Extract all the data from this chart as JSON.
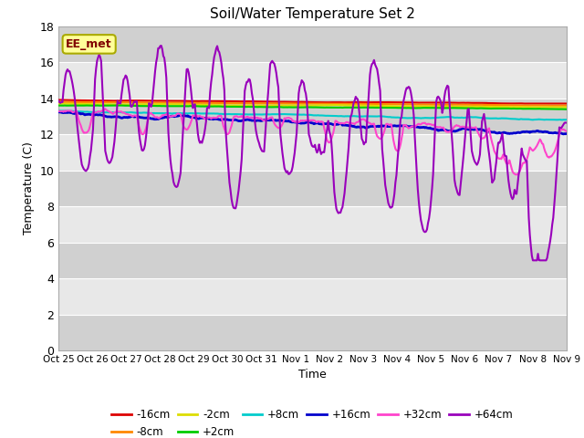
{
  "title": "Soil/Water Temperature Set 2",
  "xlabel": "Time",
  "ylabel": "Temperature (C)",
  "ylim": [
    0,
    18
  ],
  "yticks": [
    0,
    2,
    4,
    6,
    8,
    10,
    12,
    14,
    16,
    18
  ],
  "xtick_labels": [
    "Oct 25",
    "Oct 26",
    "Oct 27",
    "Oct 28",
    "Oct 29",
    "Oct 30",
    "Oct 31",
    "Nov 1",
    "Nov 2",
    "Nov 3",
    "Nov 4",
    "Nov 5",
    "Nov 6",
    "Nov 7",
    "Nov 8",
    "Nov 9"
  ],
  "annotation_text": "EE_met",
  "annotation_box_color": "#ffff99",
  "annotation_text_color": "#800000",
  "series": [
    {
      "label": "-16cm",
      "color": "#dd0000",
      "lw": 1.5
    },
    {
      "label": "-8cm",
      "color": "#ff8800",
      "lw": 1.5
    },
    {
      "label": "-2cm",
      "color": "#dddd00",
      "lw": 1.5
    },
    {
      "label": "+2cm",
      "color": "#00cc00",
      "lw": 1.5
    },
    {
      "label": "+8cm",
      "color": "#00cccc",
      "lw": 1.5
    },
    {
      "label": "+16cm",
      "color": "#0000cc",
      "lw": 2.0
    },
    {
      "label": "+32cm",
      "color": "#ff44cc",
      "lw": 1.5
    },
    {
      "label": "+64cm",
      "color": "#9900bb",
      "lw": 1.5
    }
  ],
  "bg_color": "#ffffff",
  "plot_bg_color": "#e8e8e8",
  "band_color_dark": "#d0d0d0",
  "band_color_light": "#e8e8e8",
  "grid_color": "#ffffff",
  "n_points": 500,
  "num_days": 15
}
